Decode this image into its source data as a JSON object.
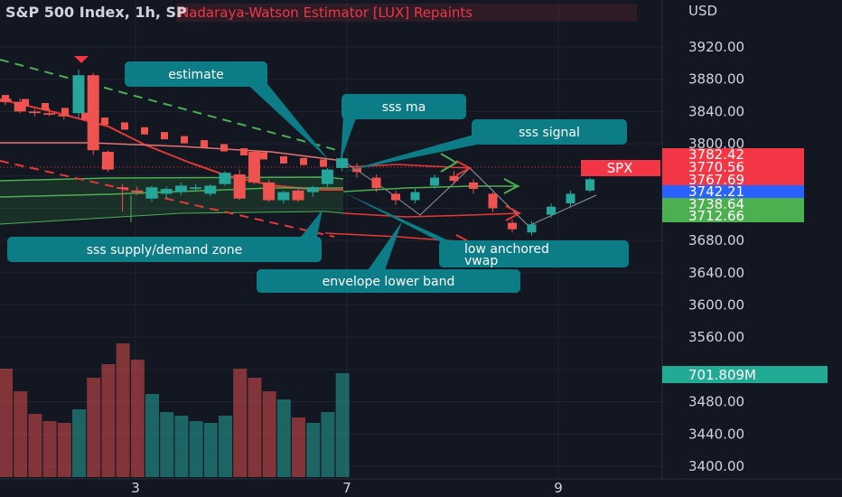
{
  "header": {
    "symbol": "S&P 500 Index, 1h, SP",
    "indicator": "Nadaraya-Watson Estimator [LUX] Repaints"
  },
  "price_axis": {
    "currency": "USD"
  },
  "tags": {
    "symbol_tag": "SPX",
    "values": [
      {
        "label": "3782.42",
        "value": 3782.42,
        "color": "#f23645"
      },
      {
        "label": "3770.56",
        "value": 3770.56,
        "color": "#f23645"
      },
      {
        "label": "3767.69",
        "value": 3767.69,
        "color": "#f23645"
      },
      {
        "label": "3742.21",
        "value": 3742.21,
        "color": "#2962ff"
      },
      {
        "label": "3738.64",
        "value": 3738.64,
        "color": "#4caf50"
      },
      {
        "label": "3712.66",
        "value": 3712.66,
        "color": "#4caf50"
      }
    ],
    "volume": {
      "label": "701.809M",
      "color": "#22ab94"
    }
  },
  "annotations": [
    {
      "id": "estimate",
      "text": "estimate"
    },
    {
      "id": "sss-ma",
      "text": "sss ma"
    },
    {
      "id": "sss-signal",
      "text": "sss signal"
    },
    {
      "id": "sss-zone",
      "text": "sss supply/demand zone"
    },
    {
      "id": "envelope-lower",
      "text": "envelope lower band"
    },
    {
      "id": "low-vwap",
      "text": "low anchored vwap",
      "line1": "low anchored",
      "line2": "vwap"
    }
  ],
  "colors": {
    "background": "#131722",
    "up": "#26a69a",
    "down": "#ef5350",
    "annotation": "#00838f",
    "grid": "#1f2430"
  },
  "chart_data": {
    "type": "candlestick",
    "y_axis": {
      "ticks": [
        3400,
        3440,
        3480,
        3520,
        3560,
        3600,
        3640,
        3680,
        3720,
        3760,
        3800,
        3840,
        3880,
        3920
      ],
      "labels": [
        "3400.00",
        "3440.00",
        "3480.00",
        "",
        "3560.00",
        "3600.00",
        "3640.00",
        "3680.00",
        "",
        "",
        "3800.00",
        "3840.00",
        "3880.00",
        "3920.00"
      ]
    },
    "x_axis": {
      "labels": [
        "3",
        "7",
        "9"
      ],
      "label_index": [
        8,
        21,
        34
      ]
    },
    "candles": [
      {
        "o": 3856,
        "h": 3860,
        "l": 3848,
        "c": 3852
      },
      {
        "o": 3852,
        "h": 3856,
        "l": 3838,
        "c": 3840
      },
      {
        "o": 3840,
        "h": 3843,
        "l": 3834,
        "c": 3838
      },
      {
        "o": 3838,
        "h": 3844,
        "l": 3834,
        "c": 3836
      },
      {
        "o": 3836,
        "h": 3840,
        "l": 3830,
        "c": 3834
      },
      {
        "o": 3838,
        "h": 3892,
        "l": 3832,
        "c": 3885
      },
      {
        "o": 3885,
        "h": 3888,
        "l": 3786,
        "c": 3792
      },
      {
        "o": 3790,
        "h": 3792,
        "l": 3765,
        "c": 3768
      },
      {
        "o": 3746,
        "h": 3750,
        "l": 3716,
        "c": 3744
      },
      {
        "o": 3742,
        "h": 3747,
        "l": 3736,
        "c": 3740
      },
      {
        "o": 3732,
        "h": 3748,
        "l": 3728,
        "c": 3746
      },
      {
        "o": 3738,
        "h": 3747,
        "l": 3732,
        "c": 3744
      },
      {
        "o": 3740,
        "h": 3752,
        "l": 3736,
        "c": 3748
      },
      {
        "o": 3744,
        "h": 3750,
        "l": 3740,
        "c": 3746
      },
      {
        "o": 3738,
        "h": 3750,
        "l": 3735,
        "c": 3748
      },
      {
        "o": 3750,
        "h": 3766,
        "l": 3748,
        "c": 3764
      },
      {
        "o": 3762,
        "h": 3768,
        "l": 3730,
        "c": 3732
      },
      {
        "o": 3790,
        "h": 3792,
        "l": 3750,
        "c": 3752
      },
      {
        "o": 3752,
        "h": 3756,
        "l": 3728,
        "c": 3730
      },
      {
        "o": 3730,
        "h": 3742,
        "l": 3726,
        "c": 3740
      },
      {
        "o": 3742,
        "h": 3746,
        "l": 3728,
        "c": 3730
      },
      {
        "o": 3740,
        "h": 3748,
        "l": 3734,
        "c": 3746
      },
      {
        "o": 3750,
        "h": 3770,
        "l": 3746,
        "c": 3768
      },
      {
        "o": 3770,
        "h": 3786,
        "l": 3766,
        "c": 3782
      }
    ],
    "estimate_candles": [
      {
        "o": 3770,
        "h": 3776,
        "l": 3758,
        "c": 3765
      },
      {
        "o": 3758,
        "h": 3762,
        "l": 3740,
        "c": 3745
      },
      {
        "o": 3738,
        "h": 3742,
        "l": 3724,
        "c": 3730
      },
      {
        "o": 3730,
        "h": 3744,
        "l": 3726,
        "c": 3740
      },
      {
        "o": 3748,
        "h": 3762,
        "l": 3744,
        "c": 3758
      },
      {
        "o": 3760,
        "h": 3766,
        "l": 3750,
        "c": 3754
      },
      {
        "o": 3752,
        "h": 3756,
        "l": 3738,
        "c": 3744
      },
      {
        "o": 3738,
        "h": 3740,
        "l": 3715,
        "c": 3720
      },
      {
        "o": 3702,
        "h": 3706,
        "l": 3690,
        "c": 3694
      },
      {
        "o": 3690,
        "h": 3704,
        "l": 3686,
        "c": 3700
      },
      {
        "o": 3712,
        "h": 3726,
        "l": 3708,
        "c": 3722
      },
      {
        "o": 3726,
        "h": 3742,
        "l": 3722,
        "c": 3738
      },
      {
        "o": 3742,
        "h": 3758,
        "l": 3740,
        "c": 3756
      }
    ],
    "estimate_dots": [
      3856,
      3851,
      3846,
      3840,
      3834,
      3828,
      3822,
      3816,
      3810,
      3805,
      3800,
      3795,
      3790,
      3785,
      3780,
      3778,
      3776
    ],
    "volume": [
      120,
      95,
      70,
      62,
      60,
      75,
      110,
      125,
      148,
      130,
      92,
      72,
      68,
      62,
      60,
      68,
      120,
      110,
      95,
      86,
      66,
      60,
      72,
      115
    ]
  }
}
